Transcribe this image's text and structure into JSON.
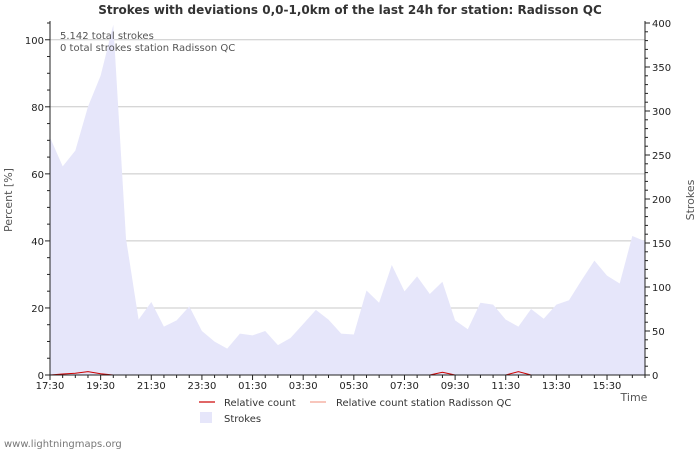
{
  "chart_data": {
    "type": "area",
    "title": "Strokes with deviations 0,0-1,0km of the last 24h for station: Radisson QC",
    "xlabel": "Time",
    "ylabel_left": "Percent   [%]",
    "ylabel_right": "Strokes",
    "ylim_left": [
      0,
      105
    ],
    "ylim_right": [
      0,
      400
    ],
    "yticks_left": [
      0,
      20,
      40,
      60,
      80,
      100
    ],
    "yticks_right": [
      0,
      50,
      100,
      150,
      200,
      250,
      300,
      350,
      400
    ],
    "x_tick_labels": [
      "17:30",
      "19:30",
      "21:30",
      "23:30",
      "01:30",
      "03:30",
      "05:30",
      "07:30",
      "09:30",
      "11:30",
      "13:30",
      "15:30"
    ],
    "x_hours_span": 23.5,
    "annotations": [
      "5.142 total strokes",
      "0 total strokes station Radisson QC"
    ],
    "grid": true,
    "series": [
      {
        "name": "Strokes",
        "axis": "right",
        "kind": "area",
        "color": "#e6e6fa",
        "x_hours": [
          0,
          0.5,
          1,
          1.5,
          2,
          2.5,
          3,
          3.5,
          4,
          4.5,
          5,
          5.5,
          6,
          6.5,
          7,
          7.5,
          8,
          8.5,
          9,
          9.5,
          10,
          10.5,
          11,
          11.5,
          12,
          12.5,
          13,
          13.5,
          14,
          14.5,
          15,
          15.5,
          16,
          16.5,
          17,
          17.5,
          18,
          18.5,
          19,
          19.5,
          20,
          20.5,
          21,
          21.5,
          22,
          22.5,
          23,
          23.5
        ],
        "values": [
          270,
          237,
          255,
          305,
          340,
          398,
          155,
          63,
          83,
          55,
          62,
          78,
          50,
          38,
          30,
          47,
          45,
          50,
          34,
          42,
          58,
          74,
          63,
          47,
          46,
          96,
          82,
          125,
          95,
          112,
          92,
          106,
          62,
          52,
          82,
          80,
          63,
          55,
          75,
          64,
          80,
          85,
          108,
          130,
          113,
          104,
          158,
          152
        ]
      },
      {
        "name": "Relative count",
        "axis": "left",
        "kind": "line",
        "color": "#cc0000",
        "x_hours": [
          0,
          0.5,
          1,
          1.5,
          2,
          2.5,
          3,
          15,
          15.5,
          16,
          18,
          18.5,
          19,
          23.5
        ],
        "values": [
          0,
          0.3,
          0.5,
          1.0,
          0.4,
          0,
          0,
          0,
          0.8,
          0,
          0,
          1.0,
          0,
          0
        ]
      },
      {
        "name": "Relative count station Radisson QC",
        "axis": "left",
        "kind": "line",
        "color": "#f4a090",
        "x_hours": [
          0,
          23.5
        ],
        "values": [
          0,
          0
        ]
      }
    ]
  },
  "footer": "www.lightningmaps.org"
}
